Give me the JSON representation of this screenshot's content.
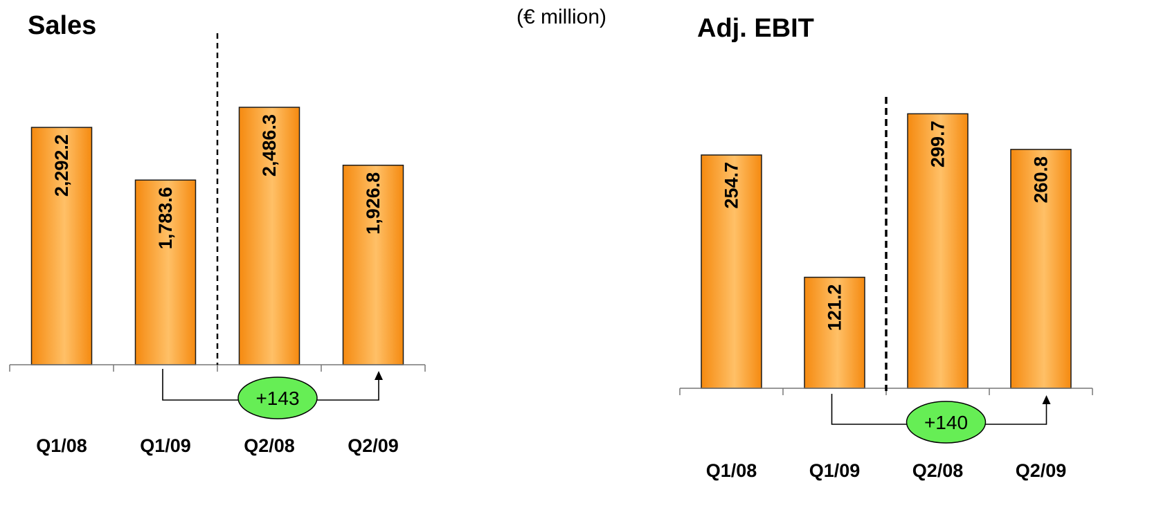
{
  "unit_label": "(€ million)",
  "colors": {
    "bar_center": "#FFC067",
    "bar_edge": "#F58A10",
    "bar_stroke": "#1a1a1a",
    "delta_fill": "#66EE55"
  },
  "chart_data": [
    {
      "type": "bar",
      "title": "Sales",
      "categories": [
        "Q1/08",
        "Q1/09",
        "Q2/08",
        "Q2/09"
      ],
      "values": [
        2292.2,
        1783.6,
        2486.3,
        1926.8
      ],
      "value_labels": [
        "2,292.2",
        "1,783.6",
        "2,486.3",
        "1,926.8"
      ],
      "comparison": {
        "from": "Q1/09",
        "to": "Q2/09",
        "label": "+143"
      },
      "separator_between": [
        "Q1/09",
        "Q2/08"
      ],
      "xlabel": "",
      "ylabel": ""
    },
    {
      "type": "bar",
      "title": "Adj. EBIT",
      "categories": [
        "Q1/08",
        "Q1/09",
        "Q2/08",
        "Q2/09"
      ],
      "values": [
        254.7,
        121.2,
        299.7,
        260.8
      ],
      "value_labels": [
        "254.7",
        "121.2",
        "299.7",
        "260.8"
      ],
      "comparison": {
        "from": "Q1/09",
        "to": "Q2/09",
        "label": "+140"
      },
      "separator_between": [
        "Q1/09",
        "Q2/08"
      ],
      "xlabel": "",
      "ylabel": ""
    }
  ]
}
